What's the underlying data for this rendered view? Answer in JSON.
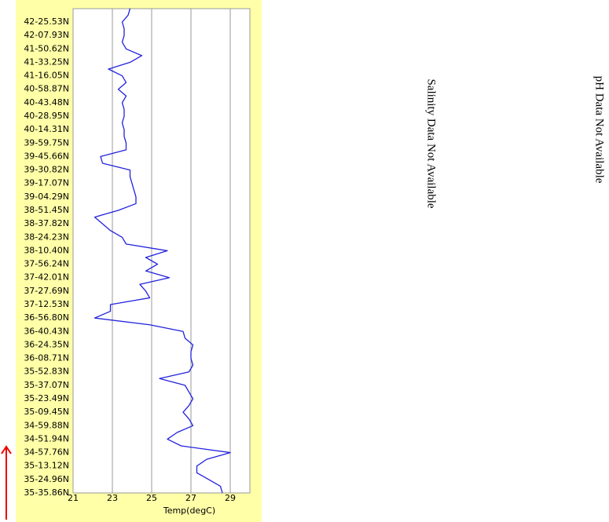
{
  "chart_data": {
    "type": "line",
    "x_label": "Temp(degC)",
    "categories": [
      null,
      null,
      "42-25.53N",
      null,
      "42-07.93N",
      null,
      "41-50.62N",
      null,
      "41-33.25N",
      null,
      "41-16.05N",
      null,
      "40-58.87N",
      null,
      "40-43.48N",
      null,
      "40-28.95N",
      null,
      "40-14.31N",
      null,
      "39-59.75N",
      null,
      "39-45.66N",
      null,
      "39-30.82N",
      null,
      "39-17.07N",
      null,
      "39-04.29N",
      null,
      "38-51.45N",
      null,
      "38-37.82N",
      null,
      "38-24.23N",
      null,
      "38-10.40N",
      null,
      "37-56.24N",
      null,
      "37-42.01N",
      null,
      "37-27.69N",
      null,
      "37-12.53N",
      null,
      "36-56.80N",
      null,
      "36-40.43N",
      null,
      "36-24.35N",
      null,
      "36-08.71N",
      null,
      "35-52.83N",
      null,
      "35-37.07N",
      null,
      "35-23.49N",
      null,
      "35-09.45N",
      null,
      "34-59.88N",
      null,
      "34-51.94N",
      null,
      "34-57.76N",
      null,
      "35-13.12N",
      null,
      "35-24.96N",
      null,
      "35-35.86N"
    ],
    "values": [
      23.9,
      23.8,
      23.5,
      23.6,
      23.6,
      23.5,
      23.7,
      24.5,
      23.9,
      22.8,
      23.5,
      23.7,
      23.3,
      23.7,
      23.5,
      23.6,
      23.6,
      23.5,
      23.6,
      23.6,
      23.7,
      23.7,
      22.4,
      22.5,
      23.9,
      23.9,
      24.0,
      24.1,
      24.2,
      24.2,
      23.3,
      22.1,
      22.5,
      22.9,
      23.5,
      23.7,
      25.8,
      24.7,
      25.3,
      24.7,
      25.9,
      24.4,
      24.7,
      24.9,
      22.9,
      22.9,
      22.1,
      24.9,
      26.6,
      26.7,
      27.1,
      27.0,
      27.0,
      27.1,
      26.9,
      25.4,
      26.7,
      26.9,
      27.1,
      26.9,
      26.6,
      26.9,
      27.1,
      26.3,
      25.8,
      26.5,
      29.0,
      27.8,
      27.3,
      27.3,
      27.9,
      28.5,
      28.6
    ],
    "color": "#2222dd",
    "xlim": [
      21,
      30
    ],
    "xticks": [
      21,
      23,
      25,
      27,
      29
    ],
    "grid": true,
    "annotations": [
      "Salinity Data Not Available",
      "pH Data Not Available"
    ]
  }
}
